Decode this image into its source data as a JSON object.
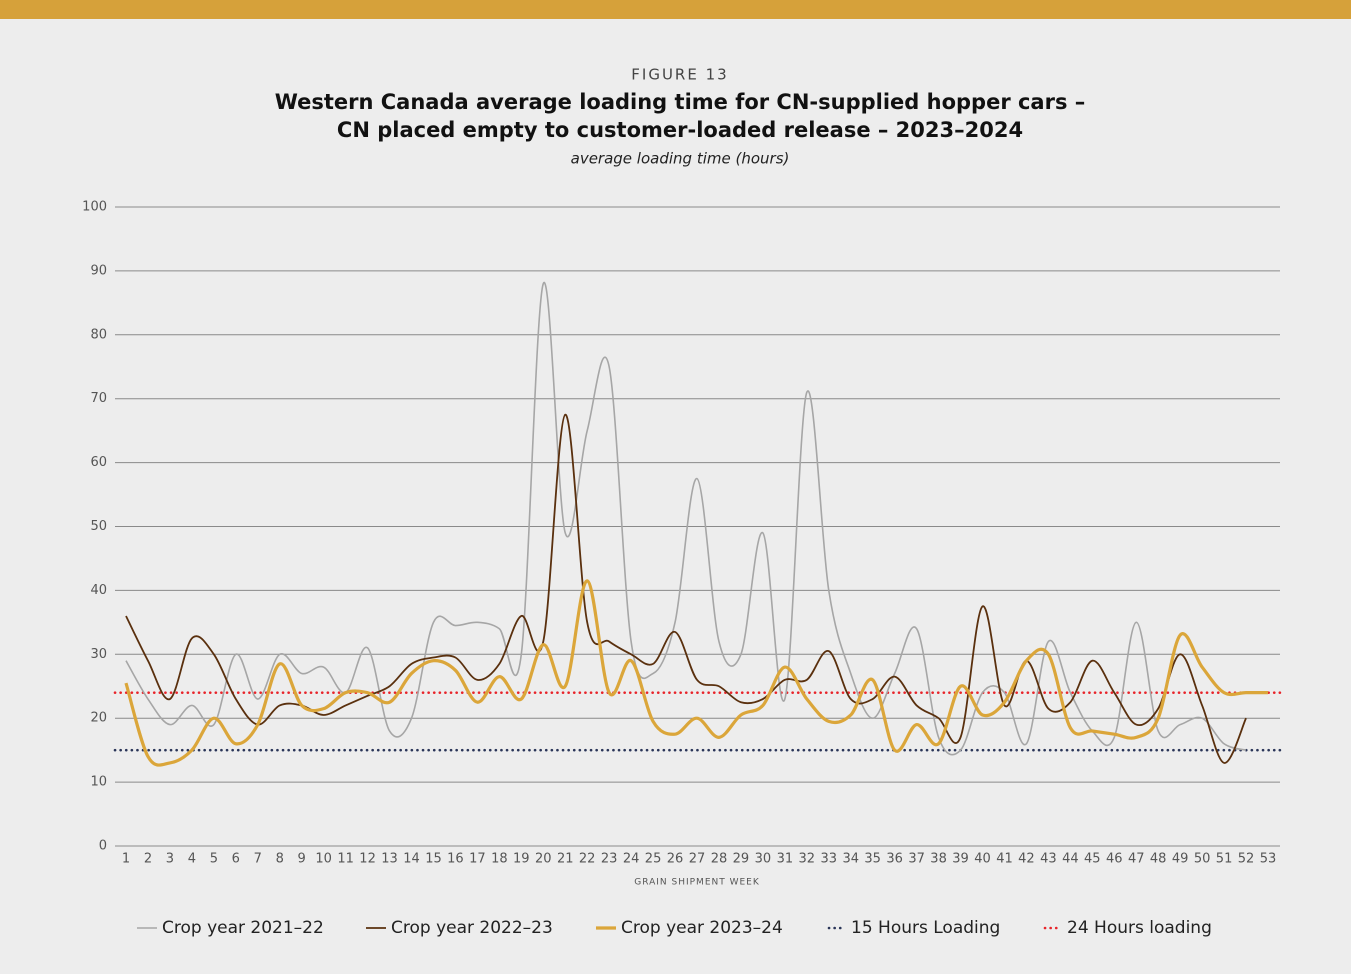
{
  "chart_data": {
    "type": "line",
    "figure_label": "FIGURE 13",
    "title": [
      "Western Canada average loading time for CN-supplied hopper cars –",
      "CN placed empty to customer-loaded release – 2023–2024"
    ],
    "subtitle": "average loading time (hours)",
    "x_label": "GRAIN SHIPMENT WEEK",
    "categories": [
      "1",
      "2",
      "3",
      "4",
      "5",
      "6",
      "7",
      "8",
      "9",
      "10",
      "11",
      "12",
      "13",
      "14",
      "15",
      "16",
      "17",
      "18",
      "19",
      "20",
      "21",
      "22",
      "23",
      "24",
      "25",
      "26",
      "27",
      "28",
      "29",
      "30",
      "31",
      "32",
      "33",
      "34",
      "35",
      "36",
      "37",
      "38",
      "39",
      "40",
      "41",
      "42",
      "43",
      "44",
      "45",
      "46",
      "47",
      "48",
      "49",
      "50",
      "51",
      "52",
      "53"
    ],
    "ylim": [
      0,
      100
    ],
    "yticks": [
      0,
      10,
      20,
      30,
      40,
      50,
      60,
      70,
      80,
      90,
      100
    ],
    "grid": true,
    "smooth": true,
    "series": [
      {
        "name": "Crop year 2021–22",
        "color": "#a6a6a6",
        "width": 1.6,
        "values": [
          29,
          23,
          19,
          22,
          19,
          30,
          23,
          30,
          27,
          28,
          24,
          31,
          18,
          20,
          35,
          34.5,
          35,
          34,
          30,
          88,
          49,
          65,
          75,
          32,
          27,
          35,
          57.5,
          32,
          30,
          49,
          23,
          71,
          40,
          27,
          20,
          27,
          34,
          17,
          15,
          24,
          24,
          16,
          32,
          24,
          18,
          17,
          35,
          18,
          19,
          20,
          16,
          15,
          null
        ]
      },
      {
        "name": "Crop year 2022–23",
        "color": "#5a300e",
        "width": 1.8,
        "values": [
          36,
          29,
          23,
          32.5,
          30,
          23,
          19,
          22,
          22,
          20.5,
          22,
          23.5,
          25,
          28.5,
          29.5,
          29.5,
          26,
          28.5,
          36,
          32,
          67.5,
          35,
          32,
          30,
          28.5,
          33.5,
          26,
          25,
          22.5,
          23,
          26,
          26,
          30.5,
          23,
          23,
          26.5,
          22,
          20,
          17,
          37.5,
          22,
          29,
          21.5,
          22.5,
          29,
          24,
          19,
          21.5,
          30,
          22,
          13,
          20,
          null
        ]
      },
      {
        "name": "Crop year 2023–24",
        "color": "#dba63a",
        "width": 3.2,
        "values": [
          25.5,
          14,
          13,
          15,
          20,
          16,
          19,
          28.5,
          22,
          21.5,
          24,
          24,
          22.5,
          27,
          29,
          27.5,
          22.5,
          26.5,
          23,
          31.5,
          25,
          41.5,
          24,
          29,
          19.5,
          17.5,
          20,
          17,
          20.5,
          22,
          28,
          23,
          19.5,
          20.5,
          26,
          15,
          19,
          16,
          25,
          20.5,
          22.5,
          29,
          30,
          18.5,
          18,
          17.5,
          17,
          20,
          33,
          28,
          24,
          24,
          24
        ]
      }
    ],
    "reference_lines": [
      {
        "name": "15 Hours Loading",
        "color": "#2a3558",
        "value": 15
      },
      {
        "name": "24 Hours loading",
        "color": "#e8242a",
        "value": 24
      }
    ]
  }
}
